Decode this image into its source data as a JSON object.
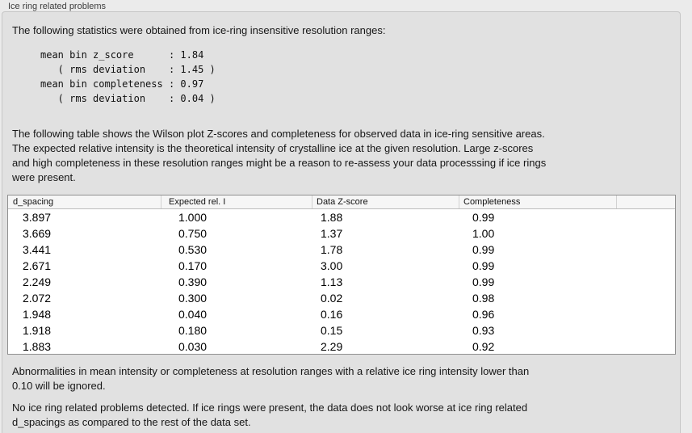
{
  "panel_title": "Ice ring related problems",
  "intro": "The following statistics were obtained from ice-ring insensitive resolution ranges:",
  "stats_block": {
    "lines": [
      "mean bin z_score      : 1.84",
      "   ( rms deviation    : 1.45 )",
      "mean bin completeness : 0.97",
      "   ( rms deviation    : 0.04 )"
    ],
    "mean_bin_z_score": "1.84",
    "z_score_rms_deviation": "1.45",
    "mean_bin_completeness": "0.97",
    "completeness_rms_deviation": "0.04"
  },
  "description_lines": [
    "The following table shows the Wilson plot Z-scores and completeness for observed data in ice-ring sensitive areas.",
    "The expected relative intensity is the theoretical intensity of crystalline ice at the given resolution. Large z-scores",
    "and high completeness in these resolution ranges might be a reason to re-assess your data processsing if ice rings",
    "were present."
  ],
  "table": {
    "columns": [
      "d_spacing",
      "Expected rel. I",
      "Data Z-score",
      "Completeness"
    ],
    "rows": [
      [
        "3.897",
        "1.000",
        "1.88",
        "0.99"
      ],
      [
        "3.669",
        "0.750",
        "1.37",
        "1.00"
      ],
      [
        "3.441",
        "0.530",
        "1.78",
        "0.99"
      ],
      [
        "2.671",
        "0.170",
        "3.00",
        "0.99"
      ],
      [
        "2.249",
        "0.390",
        "1.13",
        "0.99"
      ],
      [
        "2.072",
        "0.300",
        "0.02",
        "0.98"
      ],
      [
        "1.948",
        "0.040",
        "0.16",
        "0.96"
      ],
      [
        "1.918",
        "0.180",
        "0.15",
        "0.93"
      ],
      [
        "1.883",
        "0.030",
        "2.29",
        "0.92"
      ]
    ]
  },
  "note_lines": [
    "Abnormalities in mean intensity or completeness at resolution ranges with a relative ice ring intensity lower than",
    "0.10 will be ignored."
  ],
  "conclusion_lines": [
    "No ice ring related problems detected. If ice rings were present, the data does not look worse at ice ring related",
    "d_spacings as compared to the rest of the data set."
  ],
  "colors": {
    "page_bg": "#ebebeb",
    "panel_bg": "#e1e1e1",
    "panel_border": "#c6c6c6",
    "table_border": "#909090",
    "table_header_bg": "#f6f6f6",
    "text": "#141414"
  }
}
